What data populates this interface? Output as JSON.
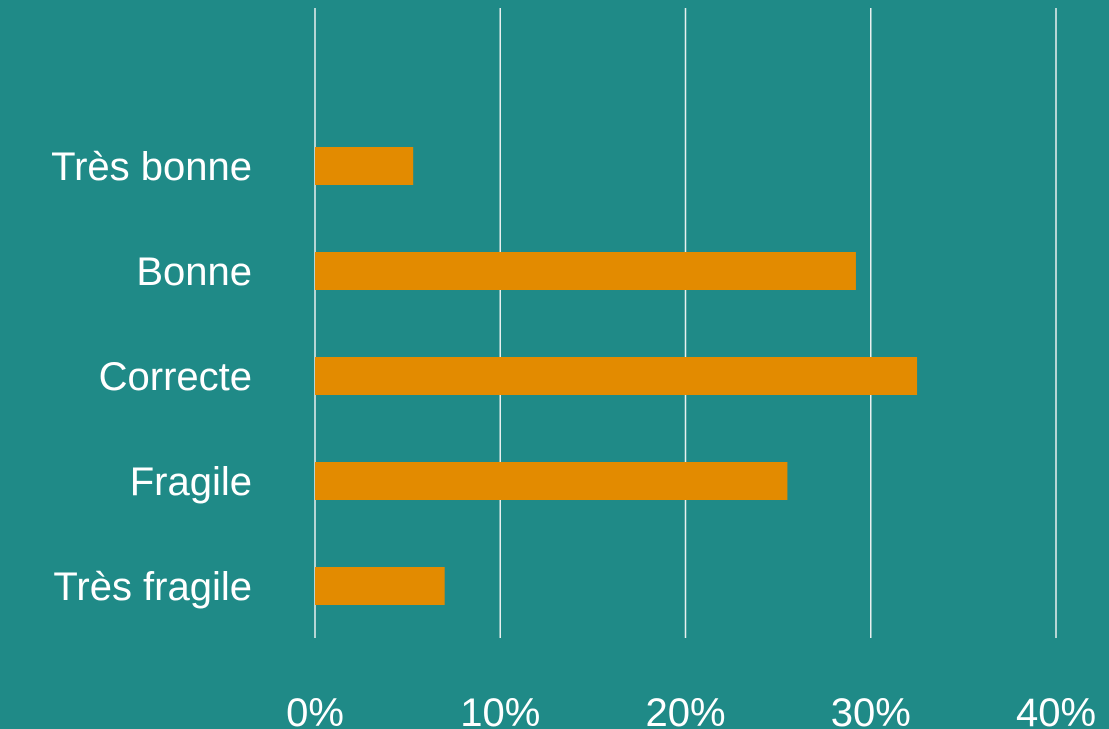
{
  "chart_data": {
    "type": "bar",
    "orientation": "horizontal",
    "title": "",
    "xlabel": "",
    "ylabel": "",
    "categories": [
      "Très bonne",
      "Bonne",
      "Correcte",
      "Fragile",
      "Très fragile"
    ],
    "values": [
      5.3,
      29.2,
      32.5,
      25.5,
      7.0
    ],
    "value_format": "percent",
    "xlim": [
      0,
      40
    ],
    "x_ticks": [
      0,
      10,
      20,
      30,
      40
    ],
    "x_tick_labels": [
      "0%",
      "10%",
      "20%",
      "30%",
      "40%"
    ],
    "grid": "vertical",
    "legend": "none",
    "colors": {
      "background": "#1f8a87",
      "bar": "#e38b00",
      "gridline": "#e8f0ef",
      "text": "#ffffff"
    }
  }
}
